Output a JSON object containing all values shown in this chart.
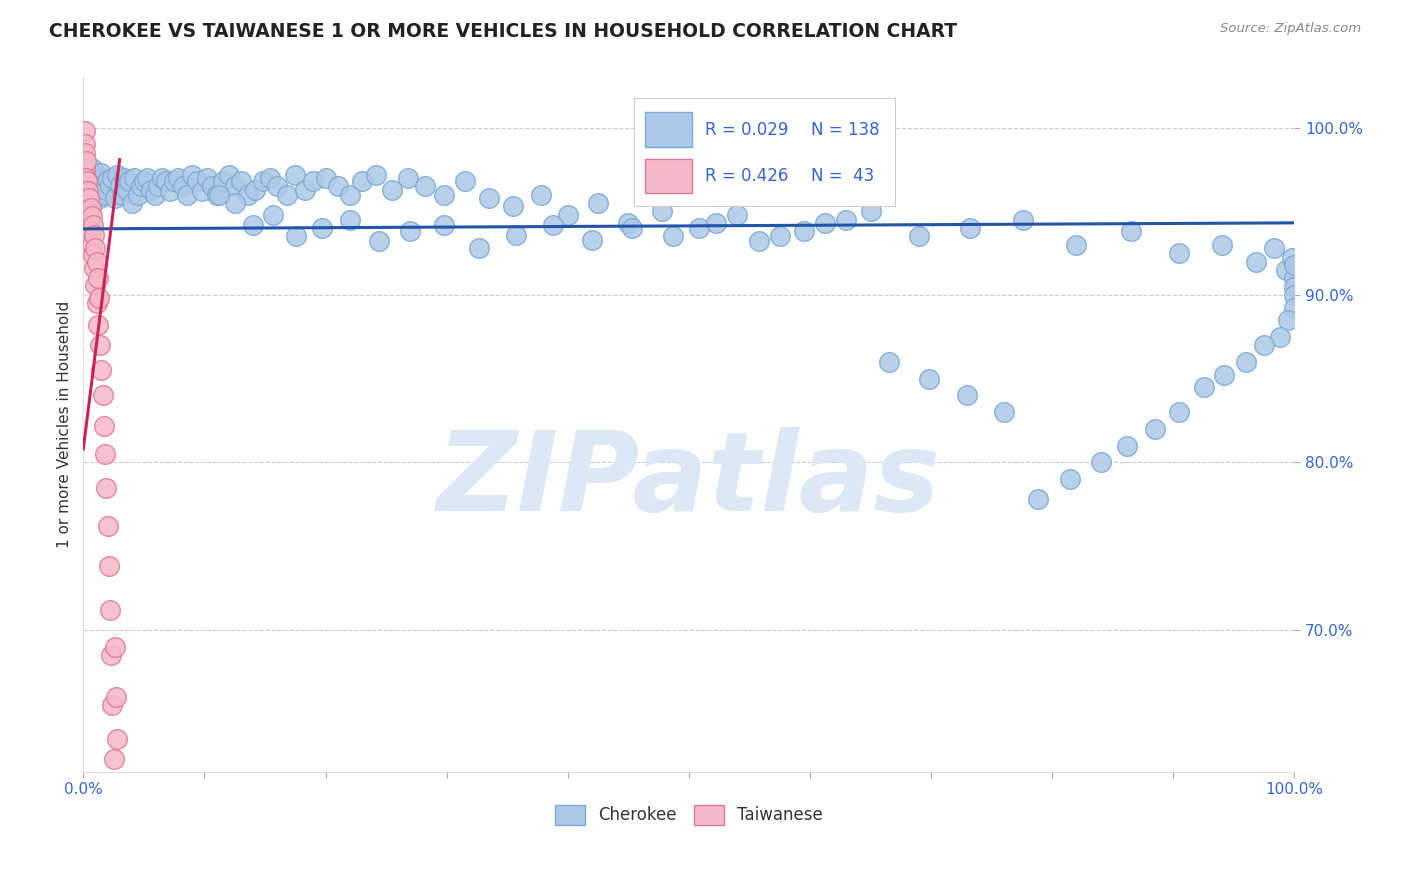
{
  "title": "CHEROKEE VS TAIWANESE 1 OR MORE VEHICLES IN HOUSEHOLD CORRELATION CHART",
  "source": "Source: ZipAtlas.com",
  "ylabel": "1 or more Vehicles in Household",
  "legend_cherokee": "Cherokee",
  "legend_taiwanese": "Taiwanese",
  "cherokee_R": 0.029,
  "cherokee_N": 138,
  "taiwanese_R": 0.426,
  "taiwanese_N": 43,
  "xlim": [
    0.0,
    1.0
  ],
  "ylim": [
    0.615,
    1.03
  ],
  "xtick_vals": [
    0.0,
    0.1,
    0.2,
    0.3,
    0.4,
    0.5,
    0.6,
    0.7,
    0.8,
    0.9,
    1.0
  ],
  "ytick_vals": [
    0.7,
    0.8,
    0.9,
    1.0
  ],
  "ytick_labels": [
    "70.0%",
    "80.0%",
    "90.0%",
    "100.0%"
  ],
  "grid_color": "#cccccc",
  "cherokee_color": "#adc8e8",
  "cherokee_edge": "#7aaad0",
  "cherokee_line_color": "#2255aa",
  "taiwanese_color": "#f5b8c8",
  "taiwanese_edge": "#e07890",
  "taiwanese_line_color": "#cc2255",
  "background_color": "#ffffff",
  "watermark": "ZIPatlas",
  "watermark_color": "#dce8f5",
  "cherokee_x": [
    0.001,
    0.002,
    0.003,
    0.004,
    0.005,
    0.006,
    0.007,
    0.008,
    0.009,
    0.01,
    0.011,
    0.012,
    0.013,
    0.014,
    0.015,
    0.016,
    0.017,
    0.018,
    0.019,
    0.02,
    0.022,
    0.024,
    0.026,
    0.028,
    0.03,
    0.032,
    0.034,
    0.036,
    0.038,
    0.04,
    0.042,
    0.045,
    0.048,
    0.05,
    0.053,
    0.056,
    0.059,
    0.062,
    0.065,
    0.068,
    0.072,
    0.075,
    0.078,
    0.082,
    0.086,
    0.09,
    0.094,
    0.098,
    0.102,
    0.106,
    0.11,
    0.115,
    0.12,
    0.125,
    0.13,
    0.136,
    0.142,
    0.148,
    0.154,
    0.16,
    0.168,
    0.175,
    0.183,
    0.19,
    0.2,
    0.21,
    0.22,
    0.23,
    0.242,
    0.255,
    0.268,
    0.282,
    0.298,
    0.315,
    0.335,
    0.355,
    0.378,
    0.4,
    0.425,
    0.45,
    0.478,
    0.508,
    0.54,
    0.575,
    0.612,
    0.65,
    0.69,
    0.732,
    0.776,
    0.82,
    0.865,
    0.905,
    0.94,
    0.968,
    0.983,
    0.993,
    0.998,
    0.9993,
    0.9998,
    1.0,
    0.9996,
    0.9999,
    0.995,
    0.988,
    0.975,
    0.96,
    0.942,
    0.925,
    0.905,
    0.885,
    0.862,
    0.84,
    0.815,
    0.788,
    0.76,
    0.73,
    0.698,
    0.665,
    0.63,
    0.595,
    0.558,
    0.522,
    0.487,
    0.453,
    0.42,
    0.388,
    0.357,
    0.327,
    0.298,
    0.27,
    0.244,
    0.22,
    0.197,
    0.176,
    0.157,
    0.14,
    0.125,
    0.112
  ],
  "cherokee_y": [
    0.97,
    0.962,
    0.978,
    0.965,
    0.968,
    0.971,
    0.955,
    0.975,
    0.96,
    0.972,
    0.968,
    0.964,
    0.97,
    0.958,
    0.973,
    0.965,
    0.96,
    0.967,
    0.963,
    0.969,
    0.965,
    0.97,
    0.958,
    0.972,
    0.966,
    0.96,
    0.97,
    0.963,
    0.968,
    0.955,
    0.97,
    0.96,
    0.965,
    0.968,
    0.97,
    0.963,
    0.96,
    0.965,
    0.97,
    0.968,
    0.962,
    0.968,
    0.97,
    0.965,
    0.96,
    0.972,
    0.968,
    0.962,
    0.97,
    0.965,
    0.96,
    0.968,
    0.972,
    0.965,
    0.968,
    0.96,
    0.963,
    0.968,
    0.97,
    0.965,
    0.96,
    0.972,
    0.963,
    0.968,
    0.97,
    0.965,
    0.96,
    0.968,
    0.972,
    0.963,
    0.97,
    0.965,
    0.96,
    0.968,
    0.958,
    0.953,
    0.96,
    0.948,
    0.955,
    0.943,
    0.95,
    0.94,
    0.948,
    0.935,
    0.943,
    0.95,
    0.935,
    0.94,
    0.945,
    0.93,
    0.938,
    0.925,
    0.93,
    0.92,
    0.928,
    0.915,
    0.922,
    0.91,
    0.918,
    0.905,
    0.9,
    0.892,
    0.885,
    0.875,
    0.87,
    0.86,
    0.852,
    0.845,
    0.83,
    0.82,
    0.81,
    0.8,
    0.79,
    0.778,
    0.83,
    0.84,
    0.85,
    0.86,
    0.945,
    0.938,
    0.932,
    0.943,
    0.935,
    0.94,
    0.933,
    0.942,
    0.936,
    0.928,
    0.942,
    0.938,
    0.932,
    0.945,
    0.94,
    0.935,
    0.948,
    0.942,
    0.955,
    0.96
  ],
  "taiwanese_x": [
    0.001,
    0.001,
    0.001,
    0.001,
    0.002,
    0.002,
    0.002,
    0.003,
    0.003,
    0.004,
    0.004,
    0.005,
    0.005,
    0.006,
    0.006,
    0.007,
    0.007,
    0.008,
    0.008,
    0.009,
    0.009,
    0.01,
    0.01,
    0.011,
    0.011,
    0.012,
    0.012,
    0.013,
    0.014,
    0.015,
    0.016,
    0.017,
    0.018,
    0.019,
    0.02,
    0.021,
    0.022,
    0.023,
    0.024,
    0.025,
    0.026,
    0.027,
    0.028
  ],
  "taiwanese_y": [
    0.998,
    0.99,
    0.985,
    0.975,
    0.98,
    0.97,
    0.962,
    0.968,
    0.955,
    0.962,
    0.95,
    0.958,
    0.944,
    0.952,
    0.938,
    0.947,
    0.93,
    0.942,
    0.924,
    0.936,
    0.916,
    0.928,
    0.906,
    0.92,
    0.895,
    0.91,
    0.882,
    0.898,
    0.87,
    0.855,
    0.84,
    0.822,
    0.805,
    0.785,
    0.762,
    0.738,
    0.712,
    0.685,
    0.655,
    0.623,
    0.69,
    0.66,
    0.635
  ]
}
